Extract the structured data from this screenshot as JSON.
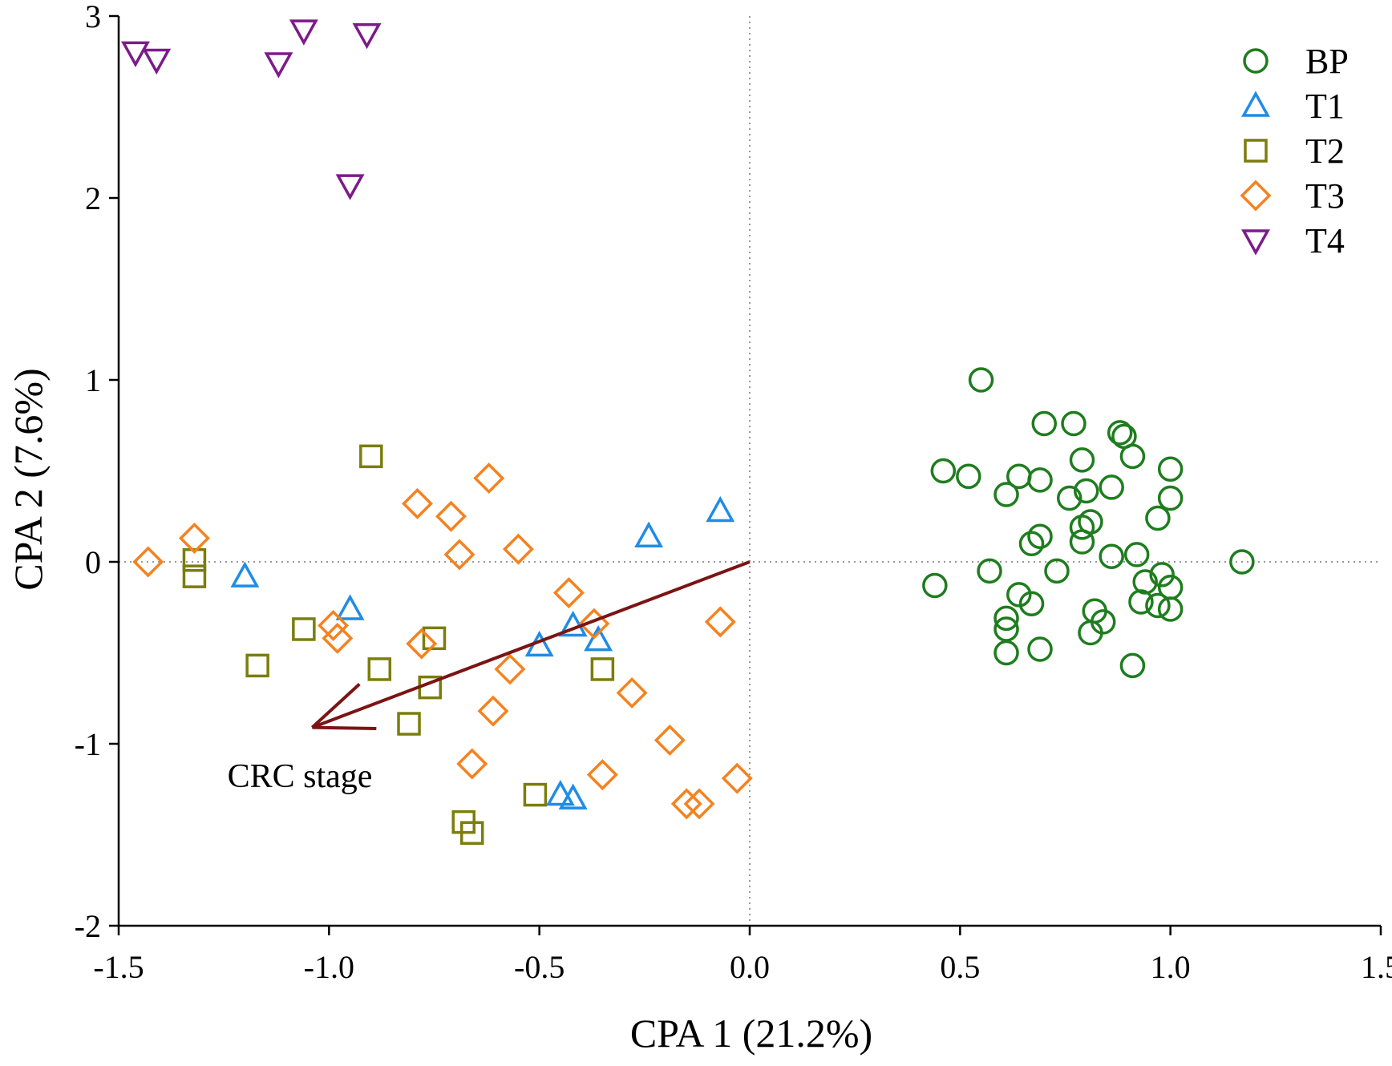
{
  "chart_data": {
    "type": "scatter",
    "xlabel": "CPA 1 (21.2%)",
    "ylabel": "CPA 2 (7.6%)",
    "xlim": [
      -1.5,
      1.5
    ],
    "ylim": [
      -2,
      3
    ],
    "x_ticks": [
      -1.5,
      -1.0,
      -0.5,
      0.0,
      0.5,
      1.0,
      1.5
    ],
    "x_tick_labels": [
      "-1.5",
      "-1.0",
      "-0.5",
      "0.0",
      "0.5",
      "1.0",
      "1.5"
    ],
    "y_ticks": [
      -2,
      -1,
      0,
      1,
      2,
      3
    ],
    "y_tick_labels": [
      "-2",
      "-1",
      "0",
      "1",
      "2",
      "3"
    ],
    "reference_lines": {
      "x": 0,
      "y": 0,
      "style": "dotted"
    },
    "legend_position": "top-right",
    "series": [
      {
        "name": "BP",
        "marker": "circle",
        "color": "#1e7d1e",
        "points": [
          [
            0.55,
            1.0
          ],
          [
            0.7,
            0.76
          ],
          [
            0.77,
            0.76
          ],
          [
            0.88,
            0.71
          ],
          [
            0.89,
            0.69
          ],
          [
            0.46,
            0.5
          ],
          [
            0.52,
            0.47
          ],
          [
            0.64,
            0.47
          ],
          [
            0.69,
            0.45
          ],
          [
            0.79,
            0.56
          ],
          [
            0.91,
            0.58
          ],
          [
            1.0,
            0.51
          ],
          [
            0.61,
            0.37
          ],
          [
            0.76,
            0.35
          ],
          [
            0.8,
            0.39
          ],
          [
            0.86,
            0.41
          ],
          [
            1.0,
            0.35
          ],
          [
            0.97,
            0.24
          ],
          [
            0.79,
            0.19
          ],
          [
            0.81,
            0.22
          ],
          [
            0.79,
            0.11
          ],
          [
            0.69,
            0.14
          ],
          [
            0.67,
            0.1
          ],
          [
            0.57,
            -0.05
          ],
          [
            0.73,
            -0.05
          ],
          [
            0.86,
            0.03
          ],
          [
            0.92,
            0.04
          ],
          [
            1.17,
            0.0
          ],
          [
            0.44,
            -0.13
          ],
          [
            0.98,
            -0.07
          ],
          [
            0.94,
            -0.11
          ],
          [
            1.0,
            -0.14
          ],
          [
            0.64,
            -0.18
          ],
          [
            0.67,
            -0.23
          ],
          [
            0.93,
            -0.22
          ],
          [
            0.97,
            -0.24
          ],
          [
            1.0,
            -0.26
          ],
          [
            0.82,
            -0.27
          ],
          [
            0.61,
            -0.31
          ],
          [
            0.61,
            -0.37
          ],
          [
            0.84,
            -0.33
          ],
          [
            0.81,
            -0.39
          ],
          [
            0.61,
            -0.5
          ],
          [
            0.69,
            -0.48
          ],
          [
            0.91,
            -0.57
          ]
        ]
      },
      {
        "name": "T1",
        "marker": "triangle-up",
        "color": "#1f8ce6",
        "points": [
          [
            -1.2,
            -0.08
          ],
          [
            -0.95,
            -0.26
          ],
          [
            -0.5,
            -0.46
          ],
          [
            -0.42,
            -0.35
          ],
          [
            -0.36,
            -0.43
          ],
          [
            -0.24,
            0.14
          ],
          [
            -0.07,
            0.28
          ],
          [
            -0.45,
            -1.28
          ],
          [
            -0.42,
            -1.3
          ]
        ]
      },
      {
        "name": "T2",
        "marker": "square",
        "color": "#7b7d0d",
        "points": [
          [
            -0.9,
            0.58
          ],
          [
            -1.32,
            0.01
          ],
          [
            -1.32,
            -0.08
          ],
          [
            -1.06,
            -0.37
          ],
          [
            -1.17,
            -0.57
          ],
          [
            -0.75,
            -0.42
          ],
          [
            -0.88,
            -0.59
          ],
          [
            -0.76,
            -0.69
          ],
          [
            -0.35,
            -0.59
          ],
          [
            -0.81,
            -0.89
          ],
          [
            -0.51,
            -1.28
          ],
          [
            -0.68,
            -1.43
          ],
          [
            -0.66,
            -1.49
          ]
        ]
      },
      {
        "name": "T3",
        "marker": "diamond",
        "color": "#f5821f",
        "points": [
          [
            -1.43,
            0.0
          ],
          [
            -1.32,
            0.13
          ],
          [
            -0.79,
            0.32
          ],
          [
            -0.71,
            0.25
          ],
          [
            -0.62,
            0.46
          ],
          [
            -0.69,
            0.04
          ],
          [
            -0.55,
            0.07
          ],
          [
            -0.99,
            -0.35
          ],
          [
            -0.98,
            -0.42
          ],
          [
            -0.78,
            -0.45
          ],
          [
            -0.43,
            -0.17
          ],
          [
            -0.37,
            -0.34
          ],
          [
            -0.57,
            -0.59
          ],
          [
            -0.07,
            -0.33
          ],
          [
            -0.28,
            -0.72
          ],
          [
            -0.61,
            -0.82
          ],
          [
            -0.66,
            -1.11
          ],
          [
            -0.19,
            -0.98
          ],
          [
            -0.35,
            -1.17
          ],
          [
            -0.03,
            -1.19
          ],
          [
            -0.15,
            -1.33
          ],
          [
            -0.12,
            -1.33
          ]
        ]
      },
      {
        "name": "T4",
        "marker": "triangle-down",
        "color": "#7d1a8a",
        "points": [
          [
            -1.46,
            2.8
          ],
          [
            -1.41,
            2.76
          ],
          [
            -1.12,
            2.74
          ],
          [
            -1.06,
            2.92
          ],
          [
            -0.91,
            2.9
          ],
          [
            -0.95,
            2.07
          ]
        ]
      }
    ],
    "arrow": {
      "label": "CRC stage",
      "from": [
        0.0,
        0.0
      ],
      "to": [
        -1.04,
        -0.91
      ],
      "color": "#7b1414"
    }
  }
}
